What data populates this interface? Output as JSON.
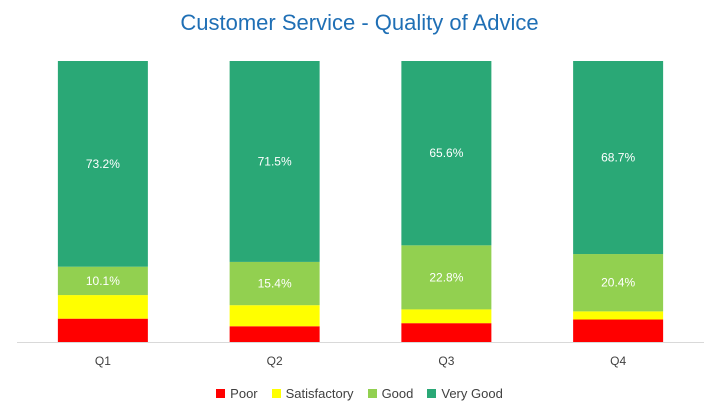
{
  "chart_data": {
    "type": "bar",
    "stacked": true,
    "title": "Customer Service - Quality of Advice",
    "categories": [
      "Q1",
      "Q2",
      "Q3",
      "Q4"
    ],
    "ylim": [
      0,
      100
    ],
    "grid": false,
    "legend": "bottom",
    "series": [
      {
        "name": "Poor",
        "color": "#ff0000",
        "values": [
          8.3,
          5.6,
          6.7,
          8.0
        ]
      },
      {
        "name": "Satisfactory",
        "color": "#ffff00",
        "values": [
          8.4,
          7.5,
          4.9,
          2.9
        ]
      },
      {
        "name": "Good",
        "color": "#92d050",
        "values": [
          10.1,
          15.4,
          22.8,
          20.4
        ]
      },
      {
        "name": "Very Good",
        "color": "#2aa876",
        "values": [
          73.2,
          71.5,
          65.6,
          68.7
        ]
      }
    ],
    "data_labels": [
      {
        "series": "Good",
        "labels": [
          "10.1%",
          "15.4%",
          "22.8%",
          "20.4%"
        ]
      },
      {
        "series": "Very Good",
        "labels": [
          "73.2%",
          "71.5%",
          "65.6%",
          "68.7%"
        ]
      }
    ]
  }
}
